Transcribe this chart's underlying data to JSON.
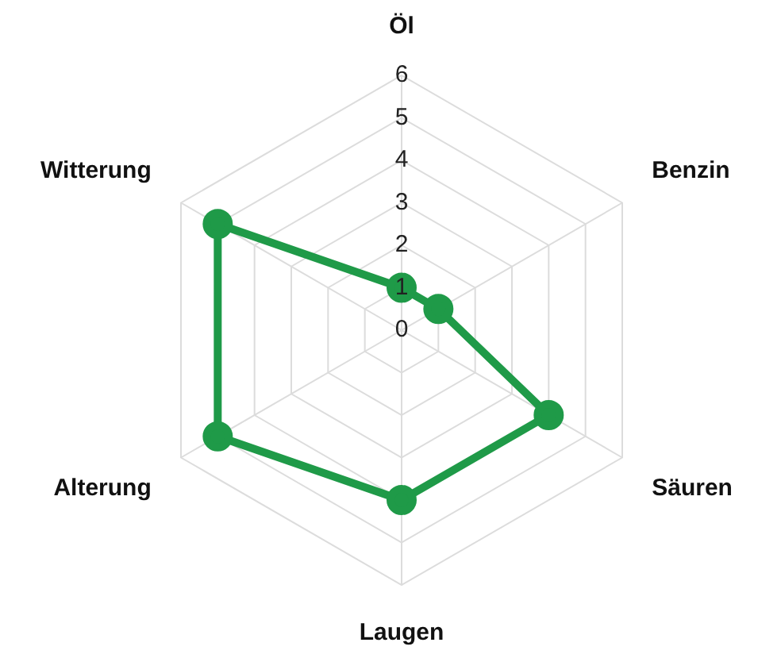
{
  "chart_data": {
    "type": "radar",
    "categories": [
      "Öl",
      "Benzin",
      "Säuren",
      "Laugen",
      "Alterung",
      "Witterung"
    ],
    "series": [
      {
        "color": "#1f9a48",
        "values": [
          1,
          1,
          4,
          4,
          5,
          5
        ]
      }
    ],
    "ylim": [
      0,
      6
    ],
    "yticks": [
      0,
      1,
      2,
      3,
      4,
      5,
      6
    ],
    "grid": true,
    "legend": false,
    "marker": "circle",
    "line_style": "solid"
  }
}
